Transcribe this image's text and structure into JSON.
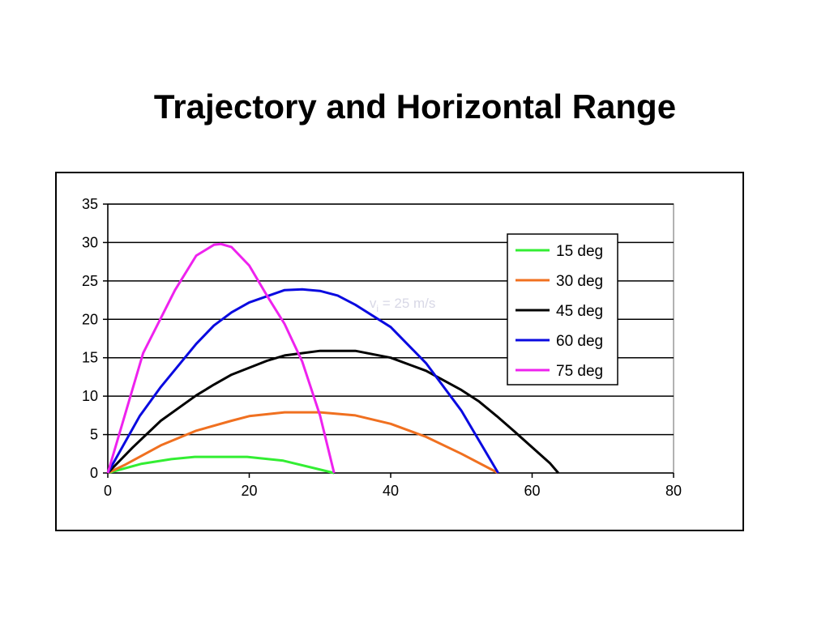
{
  "slide": {
    "title": "Trajectory and Horizontal Range"
  },
  "chart_data": {
    "type": "line",
    "title": "",
    "xlabel": "",
    "ylabel": "",
    "xlim": [
      0,
      80
    ],
    "ylim": [
      0,
      35
    ],
    "xticks": [
      0,
      20,
      40,
      60,
      80
    ],
    "yticks": [
      0,
      5,
      10,
      15,
      20,
      25,
      30,
      35
    ],
    "grid": "horizontal",
    "legend": "top-right",
    "annotation": {
      "main": "v",
      "sub": "i",
      "rest": " = 25 m/s",
      "x": 37,
      "y": 21.5
    },
    "series": [
      {
        "name": "15 deg",
        "color": "#33ee33",
        "points": [
          [
            0,
            0
          ],
          [
            4.8,
            1.2
          ],
          [
            9,
            1.8
          ],
          [
            12.3,
            2.1
          ],
          [
            16,
            2.1
          ],
          [
            19.7,
            2.1
          ],
          [
            24.8,
            1.6
          ],
          [
            32,
            0
          ]
        ]
      },
      {
        "name": "30 deg",
        "color": "#f07020",
        "points": [
          [
            0,
            0
          ],
          [
            2.5,
            1.1
          ],
          [
            7.5,
            3.6
          ],
          [
            12.5,
            5.5
          ],
          [
            17.5,
            6.8
          ],
          [
            20,
            7.4
          ],
          [
            25,
            7.9
          ],
          [
            30,
            7.9
          ],
          [
            35,
            7.5
          ],
          [
            40,
            6.4
          ],
          [
            45,
            4.7
          ],
          [
            50,
            2.5
          ],
          [
            55.2,
            0
          ]
        ]
      },
      {
        "name": "45 deg",
        "color": "#000000",
        "points": [
          [
            0,
            0
          ],
          [
            3.5,
            3.3
          ],
          [
            7.5,
            6.8
          ],
          [
            12.5,
            10.1
          ],
          [
            15,
            11.5
          ],
          [
            17.5,
            12.8
          ],
          [
            22.5,
            14.6
          ],
          [
            25,
            15.3
          ],
          [
            30,
            15.9
          ],
          [
            32.5,
            15.9
          ],
          [
            35,
            15.9
          ],
          [
            40,
            15
          ],
          [
            45,
            13.3
          ],
          [
            50,
            10.8
          ],
          [
            52.5,
            9.3
          ],
          [
            55,
            7.4
          ],
          [
            57.5,
            5.4
          ],
          [
            62.5,
            1.3
          ],
          [
            63.7,
            0
          ]
        ]
      },
      {
        "name": "60 deg",
        "color": "#0a0ae0",
        "points": [
          [
            0,
            0
          ],
          [
            4.5,
            7.4
          ],
          [
            7.5,
            11.2
          ],
          [
            12.5,
            16.8
          ],
          [
            15,
            19.2
          ],
          [
            17.5,
            20.9
          ],
          [
            20,
            22.2
          ],
          [
            25,
            23.8
          ],
          [
            27.5,
            23.9
          ],
          [
            30,
            23.7
          ],
          [
            32.5,
            23.1
          ],
          [
            35,
            21.9
          ],
          [
            40,
            19
          ],
          [
            45,
            14.3
          ],
          [
            50,
            8.1
          ],
          [
            55.2,
            0
          ]
        ]
      },
      {
        "name": "75 deg",
        "color": "#ee22ee",
        "points": [
          [
            0,
            0
          ],
          [
            5,
            15.6
          ],
          [
            9.5,
            23.8
          ],
          [
            12.5,
            28.3
          ],
          [
            15,
            29.7
          ],
          [
            16,
            29.8
          ],
          [
            17.5,
            29.4
          ],
          [
            20,
            27
          ],
          [
            22.5,
            23.1
          ],
          [
            25,
            19.4
          ],
          [
            27.5,
            14.5
          ],
          [
            30,
            7.5
          ],
          [
            32,
            0
          ]
        ]
      }
    ]
  }
}
